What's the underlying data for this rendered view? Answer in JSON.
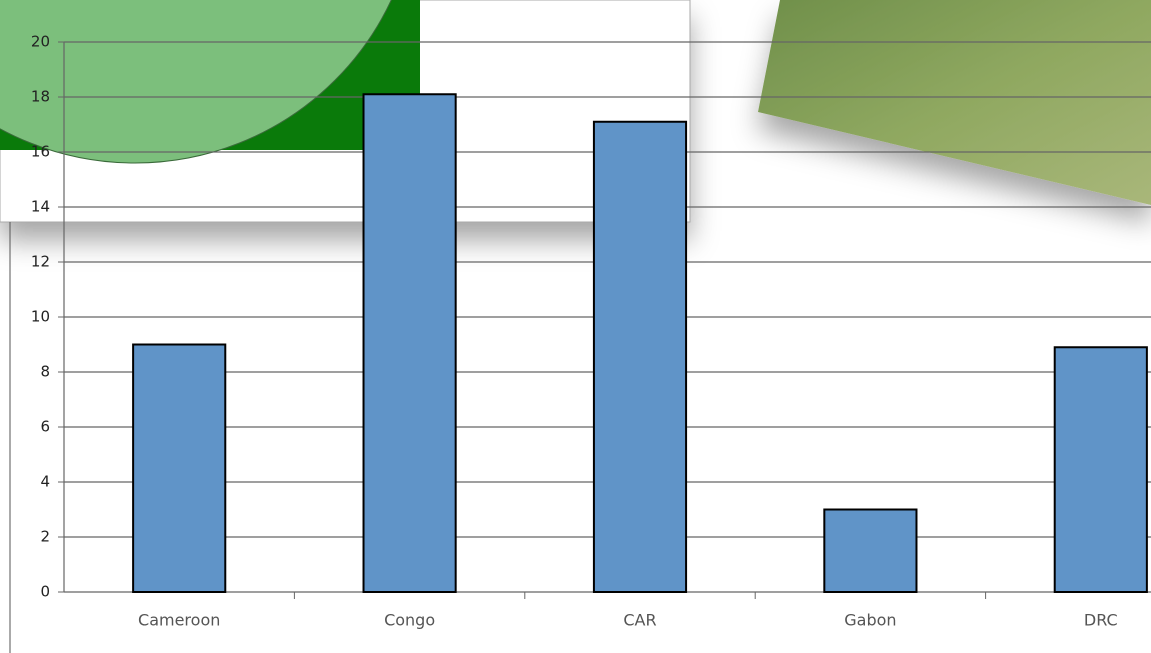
{
  "chart_data": {
    "type": "bar",
    "categories": [
      "Cameroon",
      "Congo",
      "CAR",
      "Gabon",
      "DRC"
    ],
    "values": [
      9,
      18.1,
      17.1,
      3,
      8.9
    ],
    "color": "#6094c8",
    "ylim": [
      0,
      20
    ],
    "yticks": [
      0,
      2,
      4,
      6,
      8,
      10,
      12,
      14,
      16,
      18,
      20
    ],
    "grid": true
  }
}
